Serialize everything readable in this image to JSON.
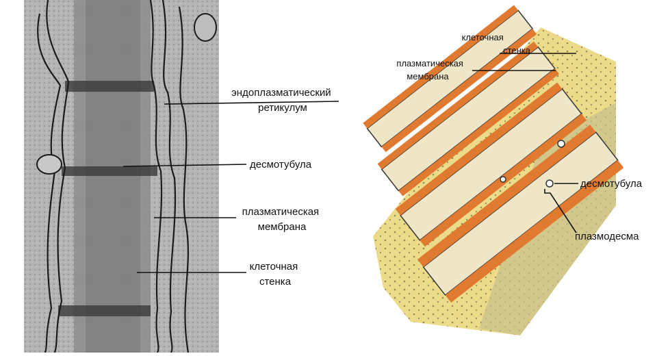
{
  "left_panel": {
    "labels": [
      {
        "lines": [
          "эндоплазматический",
          "ретикулум"
        ]
      },
      {
        "lines": [
          "десмотубула"
        ]
      },
      {
        "lines": [
          "плазматическая",
          "мембрана"
        ]
      },
      {
        "lines": [
          "клеточная",
          "стенка"
        ]
      }
    ]
  },
  "right_panel": {
    "labels": [
      {
        "lines": [
          "клеточная",
          "стенка"
        ]
      },
      {
        "lines": [
          "плазматическая",
          "мембрана"
        ]
      },
      {
        "lines": [
          "десмотубула"
        ]
      },
      {
        "lines": [
          "плазмодесма"
        ]
      }
    ]
  }
}
